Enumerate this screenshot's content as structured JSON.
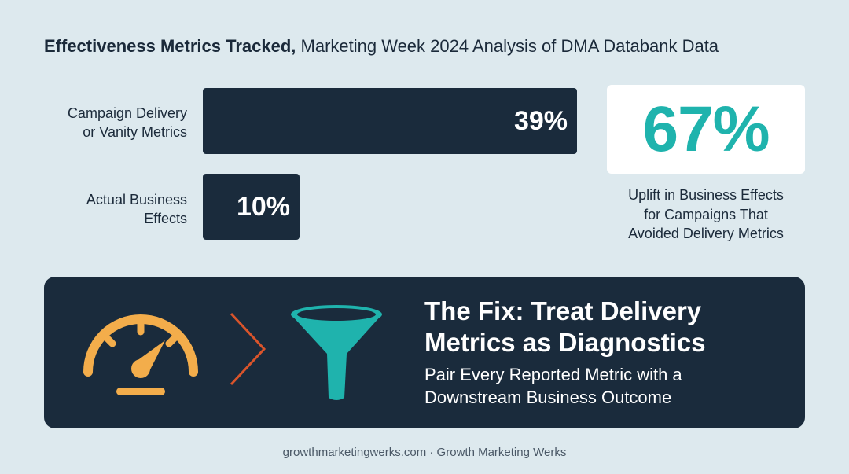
{
  "header": {
    "title_bold": "Effectiveness Metrics Tracked,",
    "title_rest": " Marketing Week 2024 Analysis of DMA Databank Data"
  },
  "chart_data": {
    "type": "bar",
    "orientation": "horizontal",
    "categories": [
      "Campaign Delivery or Vanity Metrics",
      "Actual Business Effects"
    ],
    "category_lines": [
      [
        "Campaign Delivery",
        "or Vanity Metrics"
      ],
      [
        "Actual Business",
        "Effects"
      ]
    ],
    "values": [
      39,
      10
    ],
    "value_labels": [
      "39%",
      "10%"
    ],
    "unit": "%",
    "xlim": [
      0,
      39
    ]
  },
  "stat": {
    "value": "67%",
    "caption_lines": [
      "Uplift in Business Effects",
      "for Campaigns That",
      "Avoided Delivery Metrics"
    ]
  },
  "fix": {
    "title_lines": [
      "The Fix: Treat Delivery",
      "Metrics as Diagnostics"
    ],
    "subtitle_lines": [
      "Pair Every Reported Metric with a",
      "Downstream Business Outcome"
    ],
    "icons": [
      "speedometer-icon",
      "chevron-right-icon",
      "funnel-icon"
    ]
  },
  "footer": {
    "text": "growthmarketingwerks.com · Growth Marketing Werks"
  },
  "colors": {
    "background": "#dde9ee",
    "bar": "#1a2b3c",
    "accent_teal": "#1fb3ad",
    "gauge_orange": "#f3ad4b",
    "chevron_red": "#d9542b"
  }
}
